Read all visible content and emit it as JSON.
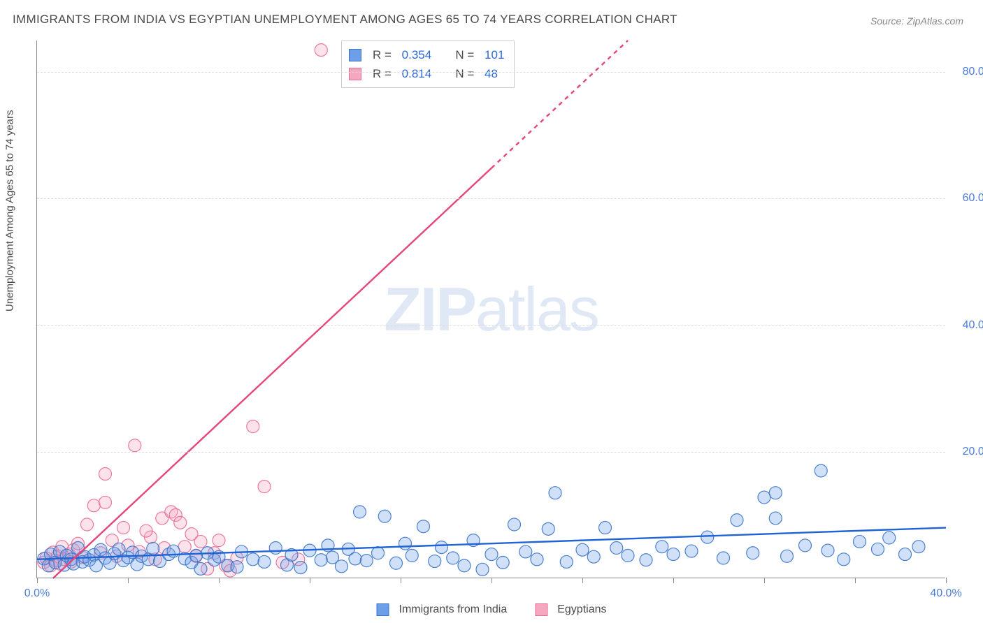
{
  "title": "IMMIGRANTS FROM INDIA VS EGYPTIAN UNEMPLOYMENT AMONG AGES 65 TO 74 YEARS CORRELATION CHART",
  "source": "Source: ZipAtlas.com",
  "watermark_zip": "ZIP",
  "watermark_rest": "atlas",
  "ylabel": "Unemployment Among Ages 65 to 74 years",
  "chart": {
    "type": "scatter+regression",
    "background_color": "#ffffff",
    "grid_color": "#dcdcdc",
    "axis_color": "#888888",
    "xlim": [
      0,
      40
    ],
    "ylim": [
      0,
      85
    ],
    "xtick_step": 4,
    "ytick_step": 20,
    "xtick_label_first": "0.0%",
    "xtick_label_last": "40.0%",
    "yticks": [
      {
        "v": 20,
        "label": "20.0%"
      },
      {
        "v": 40,
        "label": "40.0%"
      },
      {
        "v": 60,
        "label": "60.0%"
      },
      {
        "v": 80,
        "label": "80.0%"
      }
    ],
    "marker_radius": 9,
    "marker_fill_opacity": 0.32,
    "marker_stroke_opacity": 0.9,
    "marker_stroke_width": 1.2,
    "reg_line_width": 2.4,
    "yaxis_label_color": "#4a7bd8",
    "xaxis_label_color": "#4a7bd8",
    "title_color": "#4a4a4a",
    "title_fontsize": 17,
    "label_fontsize": 15,
    "tick_fontsize": 16
  },
  "series": [
    {
      "name": "Immigrants from India",
      "data_name": "series-india",
      "color": "#6d9fe8",
      "stroke": "#3a74c9",
      "reg_color": "#1f63d6",
      "r_label": "R = ",
      "r_value": "0.354",
      "n_label": "N = ",
      "n_value": "101",
      "regression": {
        "x1": 0,
        "y1": 3.0,
        "x2": 40,
        "y2": 8.0,
        "dash_from_x": null
      },
      "points": [
        [
          0.3,
          3.1
        ],
        [
          0.5,
          2.0
        ],
        [
          0.6,
          3.8
        ],
        [
          0.8,
          2.5
        ],
        [
          1.0,
          4.2
        ],
        [
          1.2,
          2.1
        ],
        [
          1.3,
          3.6
        ],
        [
          1.5,
          3.0
        ],
        [
          1.6,
          2.3
        ],
        [
          1.8,
          4.8
        ],
        [
          2.0,
          2.6
        ],
        [
          2.1,
          3.4
        ],
        [
          2.3,
          2.9
        ],
        [
          2.5,
          3.7
        ],
        [
          2.6,
          2.0
        ],
        [
          2.8,
          4.5
        ],
        [
          3.0,
          3.2
        ],
        [
          3.2,
          2.4
        ],
        [
          3.4,
          3.9
        ],
        [
          3.6,
          4.6
        ],
        [
          3.8,
          2.8
        ],
        [
          4.0,
          3.3
        ],
        [
          4.2,
          4.1
        ],
        [
          4.4,
          2.2
        ],
        [
          4.6,
          3.5
        ],
        [
          4.9,
          3.0
        ],
        [
          5.1,
          4.7
        ],
        [
          5.4,
          2.7
        ],
        [
          5.8,
          3.8
        ],
        [
          6.0,
          4.3
        ],
        [
          6.5,
          3.1
        ],
        [
          6.8,
          2.5
        ],
        [
          7.0,
          3.6
        ],
        [
          7.2,
          1.5
        ],
        [
          7.5,
          4.0
        ],
        [
          7.8,
          2.9
        ],
        [
          8.0,
          3.4
        ],
        [
          8.4,
          2.0
        ],
        [
          8.8,
          1.8
        ],
        [
          9.0,
          4.2
        ],
        [
          9.5,
          3.0
        ],
        [
          10.0,
          2.6
        ],
        [
          10.5,
          4.8
        ],
        [
          11.0,
          2.1
        ],
        [
          11.2,
          3.7
        ],
        [
          11.6,
          1.7
        ],
        [
          12.0,
          4.4
        ],
        [
          12.5,
          2.9
        ],
        [
          12.8,
          5.2
        ],
        [
          13.0,
          3.3
        ],
        [
          13.4,
          1.9
        ],
        [
          13.7,
          4.6
        ],
        [
          14.0,
          3.1
        ],
        [
          14.2,
          10.5
        ],
        [
          14.5,
          2.8
        ],
        [
          15.0,
          4.0
        ],
        [
          15.3,
          9.8
        ],
        [
          15.8,
          2.4
        ],
        [
          16.2,
          5.5
        ],
        [
          16.5,
          3.6
        ],
        [
          17.0,
          8.2
        ],
        [
          17.5,
          2.7
        ],
        [
          17.8,
          4.9
        ],
        [
          18.3,
          3.2
        ],
        [
          18.8,
          2.0
        ],
        [
          19.2,
          6.0
        ],
        [
          19.6,
          1.4
        ],
        [
          20.0,
          3.8
        ],
        [
          20.5,
          2.5
        ],
        [
          21.0,
          8.5
        ],
        [
          21.5,
          4.2
        ],
        [
          22.0,
          3.0
        ],
        [
          22.5,
          7.8
        ],
        [
          22.8,
          13.5
        ],
        [
          23.3,
          2.6
        ],
        [
          24.0,
          4.5
        ],
        [
          24.5,
          3.4
        ],
        [
          25.0,
          8.0
        ],
        [
          25.5,
          4.8
        ],
        [
          26.0,
          3.6
        ],
        [
          26.8,
          2.9
        ],
        [
          27.5,
          5.0
        ],
        [
          28.0,
          3.8
        ],
        [
          28.8,
          4.3
        ],
        [
          29.5,
          6.5
        ],
        [
          30.2,
          3.2
        ],
        [
          30.8,
          9.2
        ],
        [
          31.5,
          4.0
        ],
        [
          32.0,
          12.8
        ],
        [
          32.5,
          13.5
        ],
        [
          32.5,
          9.5
        ],
        [
          33.0,
          3.5
        ],
        [
          33.8,
          5.2
        ],
        [
          34.5,
          17.0
        ],
        [
          34.8,
          4.4
        ],
        [
          35.5,
          3.0
        ],
        [
          36.2,
          5.8
        ],
        [
          37.0,
          4.6
        ],
        [
          37.5,
          6.4
        ],
        [
          38.2,
          3.8
        ],
        [
          38.8,
          5.0
        ]
      ]
    },
    {
      "name": "Egyptians",
      "data_name": "series-egyptians",
      "color": "#f5a7c0",
      "stroke": "#e96b97",
      "reg_color": "#e6447c",
      "r_label": "R = ",
      "r_value": "0.814",
      "n_label": "N = ",
      "n_value": "48",
      "regression": {
        "x1": 0.7,
        "y1": 0,
        "x2": 26,
        "y2": 85,
        "dash_from_x": 20
      },
      "points": [
        [
          0.3,
          2.5
        ],
        [
          0.4,
          3.2
        ],
        [
          0.6,
          2.0
        ],
        [
          0.7,
          4.1
        ],
        [
          0.8,
          2.8
        ],
        [
          0.9,
          3.5
        ],
        [
          1.0,
          2.3
        ],
        [
          1.1,
          5.0
        ],
        [
          1.2,
          3.0
        ],
        [
          1.4,
          3.8
        ],
        [
          1.5,
          2.6
        ],
        [
          1.6,
          4.5
        ],
        [
          1.8,
          5.5
        ],
        [
          2.0,
          3.3
        ],
        [
          2.2,
          8.5
        ],
        [
          2.5,
          11.5
        ],
        [
          2.8,
          4.0
        ],
        [
          3.0,
          12.0
        ],
        [
          3.0,
          16.5
        ],
        [
          3.3,
          6.0
        ],
        [
          3.5,
          3.5
        ],
        [
          3.8,
          8.0
        ],
        [
          4.0,
          5.2
        ],
        [
          4.3,
          21.0
        ],
        [
          4.5,
          4.2
        ],
        [
          5.0,
          6.5
        ],
        [
          5.2,
          3.0
        ],
        [
          5.5,
          9.5
        ],
        [
          5.9,
          10.5
        ],
        [
          6.1,
          10.0
        ],
        [
          6.5,
          5.0
        ],
        [
          6.8,
          7.0
        ],
        [
          7.0,
          3.5
        ],
        [
          7.5,
          1.5
        ],
        [
          7.8,
          4.0
        ],
        [
          8.3,
          2.0
        ],
        [
          8.5,
          1.2
        ],
        [
          8.8,
          3.2
        ],
        [
          9.5,
          24.0
        ],
        [
          10.0,
          14.5
        ],
        [
          10.8,
          2.5
        ],
        [
          11.5,
          3.0
        ],
        [
          12.5,
          83.5
        ],
        [
          7.2,
          5.8
        ],
        [
          6.3,
          8.8
        ],
        [
          4.8,
          7.5
        ],
        [
          5.6,
          4.8
        ],
        [
          8.0,
          6.0
        ]
      ]
    }
  ],
  "legend": {
    "series1_label": "Immigrants from India",
    "series2_label": "Egyptians"
  }
}
